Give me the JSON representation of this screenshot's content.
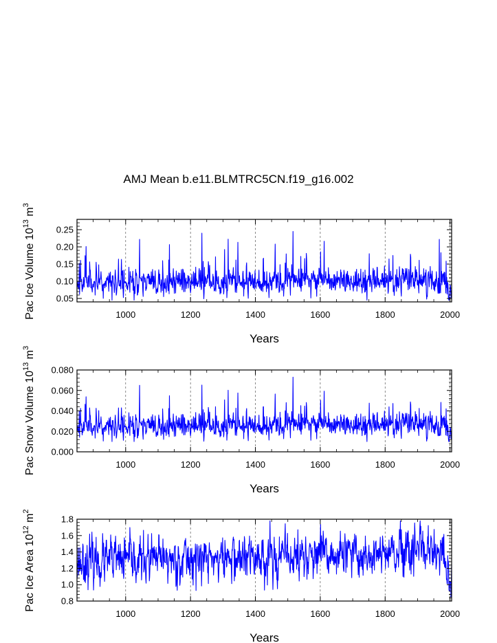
{
  "figure": {
    "title": "AMJ Mean b.e11.BLMTRC5CN.f19_g16.002",
    "line_color": "#0000ff"
  },
  "chart_data": [
    {
      "type": "line",
      "name": "ice-volume",
      "ylabel_main": "Pac Ice Volume 10",
      "ylabel_exp": "13",
      "ylabel_unit": " m",
      "ylabel_unit_exp": "3",
      "xlabel": "Years",
      "xlim": [
        850,
        2005
      ],
      "ylim": [
        0.04,
        0.28
      ],
      "xticks": [
        1000,
        1200,
        1400,
        1600,
        1800,
        2000
      ],
      "xtick_labels": [
        "1000",
        "1200",
        "1400",
        "1600",
        "1800",
        "2000"
      ],
      "yticks": [
        0.05,
        0.1,
        0.15,
        0.2,
        0.25
      ],
      "ytick_labels": [
        "0.05",
        "0.10",
        "0.15",
        "0.20",
        "0.25"
      ],
      "grid": "vertical-dashed",
      "series": [
        {
          "name": "Pac Ice Volume",
          "x_start": 850,
          "x_step": 1,
          "n": 1156,
          "base": 0.1,
          "trend": 6e-06,
          "noise": 0.018,
          "spike_prob": 0.04,
          "spike_amp": 0.11,
          "seed": 11,
          "y_min_clip": 0.045,
          "y_max_clip": 0.245,
          "end_drop": 0.05
        }
      ],
      "highlights": [
        {
          "x": 1516,
          "y": 0.245
        },
        {
          "x": 1043,
          "y": 0.222
        },
        {
          "x": 1967,
          "y": 0.222
        }
      ]
    },
    {
      "type": "line",
      "name": "snow-volume",
      "ylabel_main": "Pac Snow Volume 10",
      "ylabel_exp": "13",
      "ylabel_unit": " m",
      "ylabel_unit_exp": "3",
      "xlabel": "Years",
      "xlim": [
        850,
        2005
      ],
      "ylim": [
        0.0,
        0.08
      ],
      "xticks": [
        1000,
        1200,
        1400,
        1600,
        1800,
        2000
      ],
      "xtick_labels": [
        "1000",
        "1200",
        "1400",
        "1600",
        "1800",
        "2000"
      ],
      "yticks": [
        0.0,
        0.02,
        0.04,
        0.06,
        0.08
      ],
      "ytick_labels": [
        "0.000",
        "0.020",
        "0.040",
        "0.060",
        "0.080"
      ],
      "grid": "vertical-dashed",
      "series": [
        {
          "name": "Pac Snow Volume",
          "x_start": 850,
          "x_step": 1,
          "n": 1156,
          "base": 0.026,
          "trend": 2.5e-06,
          "noise": 0.0055,
          "spike_prob": 0.04,
          "spike_amp": 0.03,
          "seed": 11,
          "y_min_clip": 0.01,
          "y_max_clip": 0.073,
          "end_drop": 0.014
        }
      ],
      "highlights": [
        {
          "x": 1516,
          "y": 0.073
        },
        {
          "x": 1043,
          "y": 0.065
        }
      ]
    },
    {
      "type": "line",
      "name": "ice-area",
      "ylabel_main": "Pac Ice Area 10",
      "ylabel_exp": "12",
      "ylabel_unit": " m",
      "ylabel_unit_exp": "2",
      "xlabel": "Years",
      "xlim": [
        850,
        2005
      ],
      "ylim": [
        0.8,
        1.8
      ],
      "xticks": [
        1000,
        1200,
        1400,
        1600,
        1800,
        2000
      ],
      "xtick_labels": [
        "1000",
        "1200",
        "1400",
        "1600",
        "1800",
        "2000"
      ],
      "yticks": [
        0.8,
        1.0,
        1.2,
        1.4,
        1.6,
        1.8
      ],
      "ytick_labels": [
        "0.8",
        "1.0",
        "1.2",
        "1.4",
        "1.6",
        "1.8"
      ],
      "grid": "vertical-dashed",
      "series": [
        {
          "name": "Pac Ice Area",
          "x_start": 850,
          "x_step": 1,
          "n": 1156,
          "base": 1.33,
          "trend": 9e-05,
          "noise": 0.13,
          "spike_prob": 0.0,
          "spike_amp": 0.0,
          "seed": 23,
          "y_min_clip": 0.9,
          "y_max_clip": 1.78,
          "end_drop": 0.45
        }
      ],
      "highlights": [
        {
          "x": 1445,
          "y": 1.78
        },
        {
          "x": 2003,
          "y": 0.85
        }
      ]
    }
  ]
}
